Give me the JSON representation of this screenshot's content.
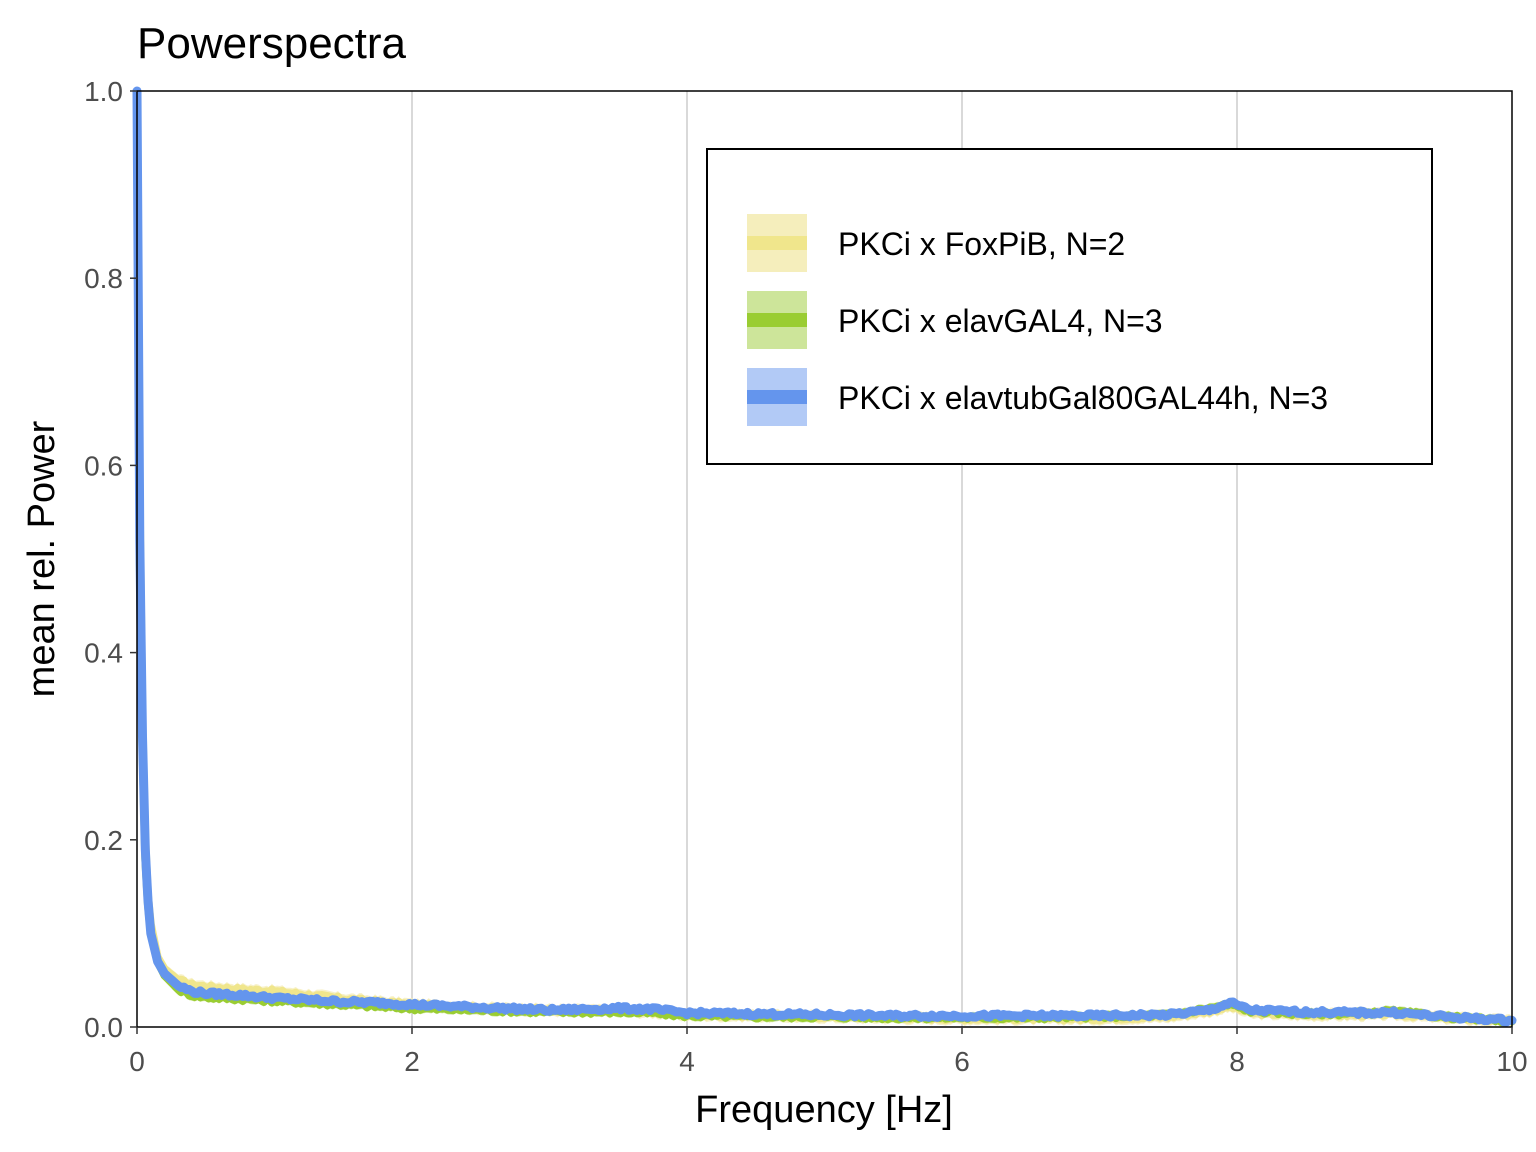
{
  "chart_data": {
    "type": "line",
    "title": "Powerspectra",
    "xlabel": "Frequency [Hz]",
    "ylabel": "mean rel. Power",
    "xlim": [
      0,
      10
    ],
    "ylim": [
      0,
      1.0
    ],
    "x_ticks": [
      0,
      2,
      4,
      6,
      8,
      10
    ],
    "x_tick_labels": [
      "0",
      "2",
      "4",
      "6",
      "8",
      "10"
    ],
    "y_ticks": [
      0,
      0.2,
      0.4,
      0.6,
      0.8,
      1.0
    ],
    "y_tick_labels": [
      "0.0",
      "0.2",
      "0.4",
      "0.6",
      "0.8",
      "1.0"
    ],
    "grid": "vertical major",
    "legend_position": "top-right",
    "x": [
      0,
      0.02,
      0.04,
      0.06,
      0.08,
      0.1,
      0.15,
      0.2,
      0.3,
      0.4,
      0.5,
      0.75,
      1.0,
      1.25,
      1.5,
      1.75,
      2.0,
      2.5,
      3.0,
      3.5,
      3.75,
      4.0,
      4.5,
      5.0,
      5.5,
      6.0,
      6.5,
      7.0,
      7.5,
      7.8,
      7.95,
      8.1,
      8.5,
      9.0,
      9.1,
      9.5,
      10.0
    ],
    "series": [
      {
        "name": "PKCi x FoxPiB, N=2",
        "color": "#f0e68c",
        "band_color": "#f5eebc",
        "values": [
          1.0,
          0.55,
          0.32,
          0.2,
          0.14,
          0.11,
          0.075,
          0.062,
          0.05,
          0.045,
          0.043,
          0.04,
          0.038,
          0.034,
          0.03,
          0.027,
          0.024,
          0.02,
          0.018,
          0.017,
          0.016,
          0.013,
          0.012,
          0.011,
          0.01,
          0.009,
          0.009,
          0.009,
          0.011,
          0.017,
          0.022,
          0.015,
          0.013,
          0.013,
          0.014,
          0.01,
          0.006
        ],
        "band_width": 0.006
      },
      {
        "name": "PKCi x elavGAL4, N=3",
        "color": "#9acd32",
        "band_color": "#cde59a",
        "values": [
          1.0,
          0.5,
          0.3,
          0.18,
          0.13,
          0.1,
          0.07,
          0.055,
          0.04,
          0.034,
          0.032,
          0.03,
          0.028,
          0.026,
          0.024,
          0.022,
          0.02,
          0.018,
          0.016,
          0.016,
          0.015,
          0.012,
          0.011,
          0.011,
          0.01,
          0.01,
          0.01,
          0.011,
          0.013,
          0.02,
          0.024,
          0.017,
          0.014,
          0.015,
          0.017,
          0.011,
          0.006
        ],
        "band_width": 0.005
      },
      {
        "name": "PKCi x elavtubGal80GAL44h, N=3",
        "color": "#6495ed",
        "band_color": "#b2caf6",
        "values": [
          1.0,
          0.52,
          0.31,
          0.19,
          0.135,
          0.1,
          0.07,
          0.057,
          0.044,
          0.038,
          0.036,
          0.034,
          0.031,
          0.029,
          0.027,
          0.026,
          0.024,
          0.021,
          0.018,
          0.02,
          0.019,
          0.015,
          0.014,
          0.013,
          0.012,
          0.012,
          0.012,
          0.012,
          0.013,
          0.018,
          0.026,
          0.018,
          0.016,
          0.015,
          0.016,
          0.011,
          0.007
        ],
        "band_width": 0.004
      }
    ]
  }
}
